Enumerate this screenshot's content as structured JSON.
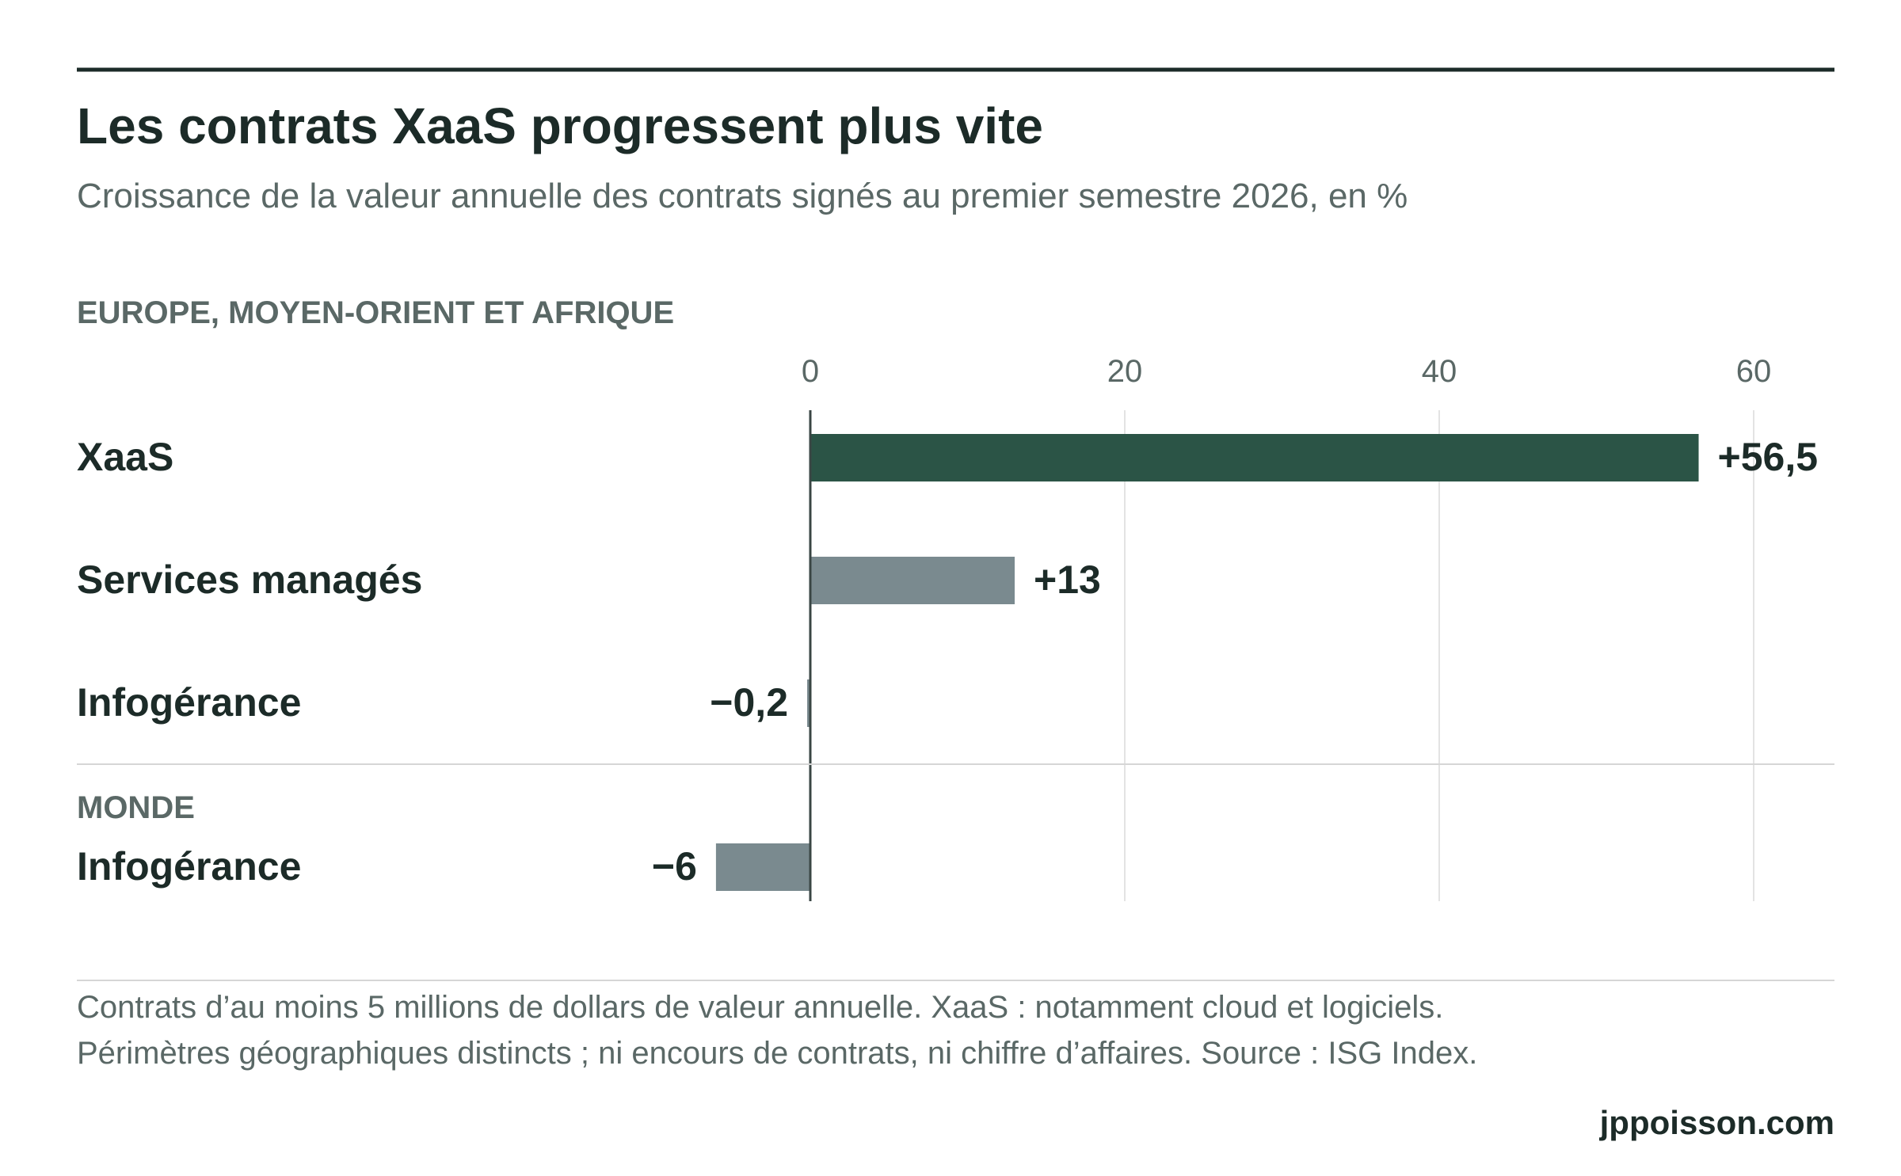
{
  "header": {
    "title": "Les contrats XaaS progressent plus vite",
    "subtitle": "Croissance de la valeur annuelle des contrats signés au premier semestre 2026, en %"
  },
  "footer": {
    "note_line1": "Contrats d’au moins 5 millions de dollars de valeur annuelle. XaaS : notamment cloud et logiciels.",
    "note_line2": "Périmètres géographiques distincts ; ni encours de contrats, ni chiffre d’affaires. Source : ISG Index.",
    "brand": "jppoisson.com"
  },
  "colors": {
    "highlight": "#2b5446",
    "neutral": "#7a8a8f",
    "text_dark": "#1c2b28",
    "text_muted": "#5a6866",
    "gridline": "#e3e3e3",
    "rule": "#1c2b28"
  },
  "chart_data": {
    "type": "bar",
    "orientation": "horizontal",
    "title": "Les contrats XaaS progressent plus vite",
    "subtitle": "Croissance de la valeur annuelle des contrats signés au premier semestre 2026, en %",
    "xlim": [
      -10,
      65
    ],
    "xticks": [
      0,
      20,
      40,
      60
    ],
    "xtick_labels": [
      "0",
      "20",
      "40",
      "60"
    ],
    "grid": true,
    "groups": [
      {
        "label": "EUROPE, MOYEN-ORIENT ET AFRIQUE",
        "bars": [
          {
            "category": "XaaS",
            "value": 56.5,
            "value_label": "+56,5",
            "color": "#2b5446"
          },
          {
            "category": "Services managés",
            "value": 13,
            "value_label": "+13",
            "color": "#7a8a8f"
          },
          {
            "category": "Infogérance",
            "value": -0.2,
            "value_label": "−0,2",
            "color": "#7a8a8f"
          }
        ]
      },
      {
        "label": "MONDE",
        "bars": [
          {
            "category": "Infogérance",
            "value": -6,
            "value_label": "−6",
            "color": "#7a8a8f"
          }
        ]
      }
    ]
  }
}
